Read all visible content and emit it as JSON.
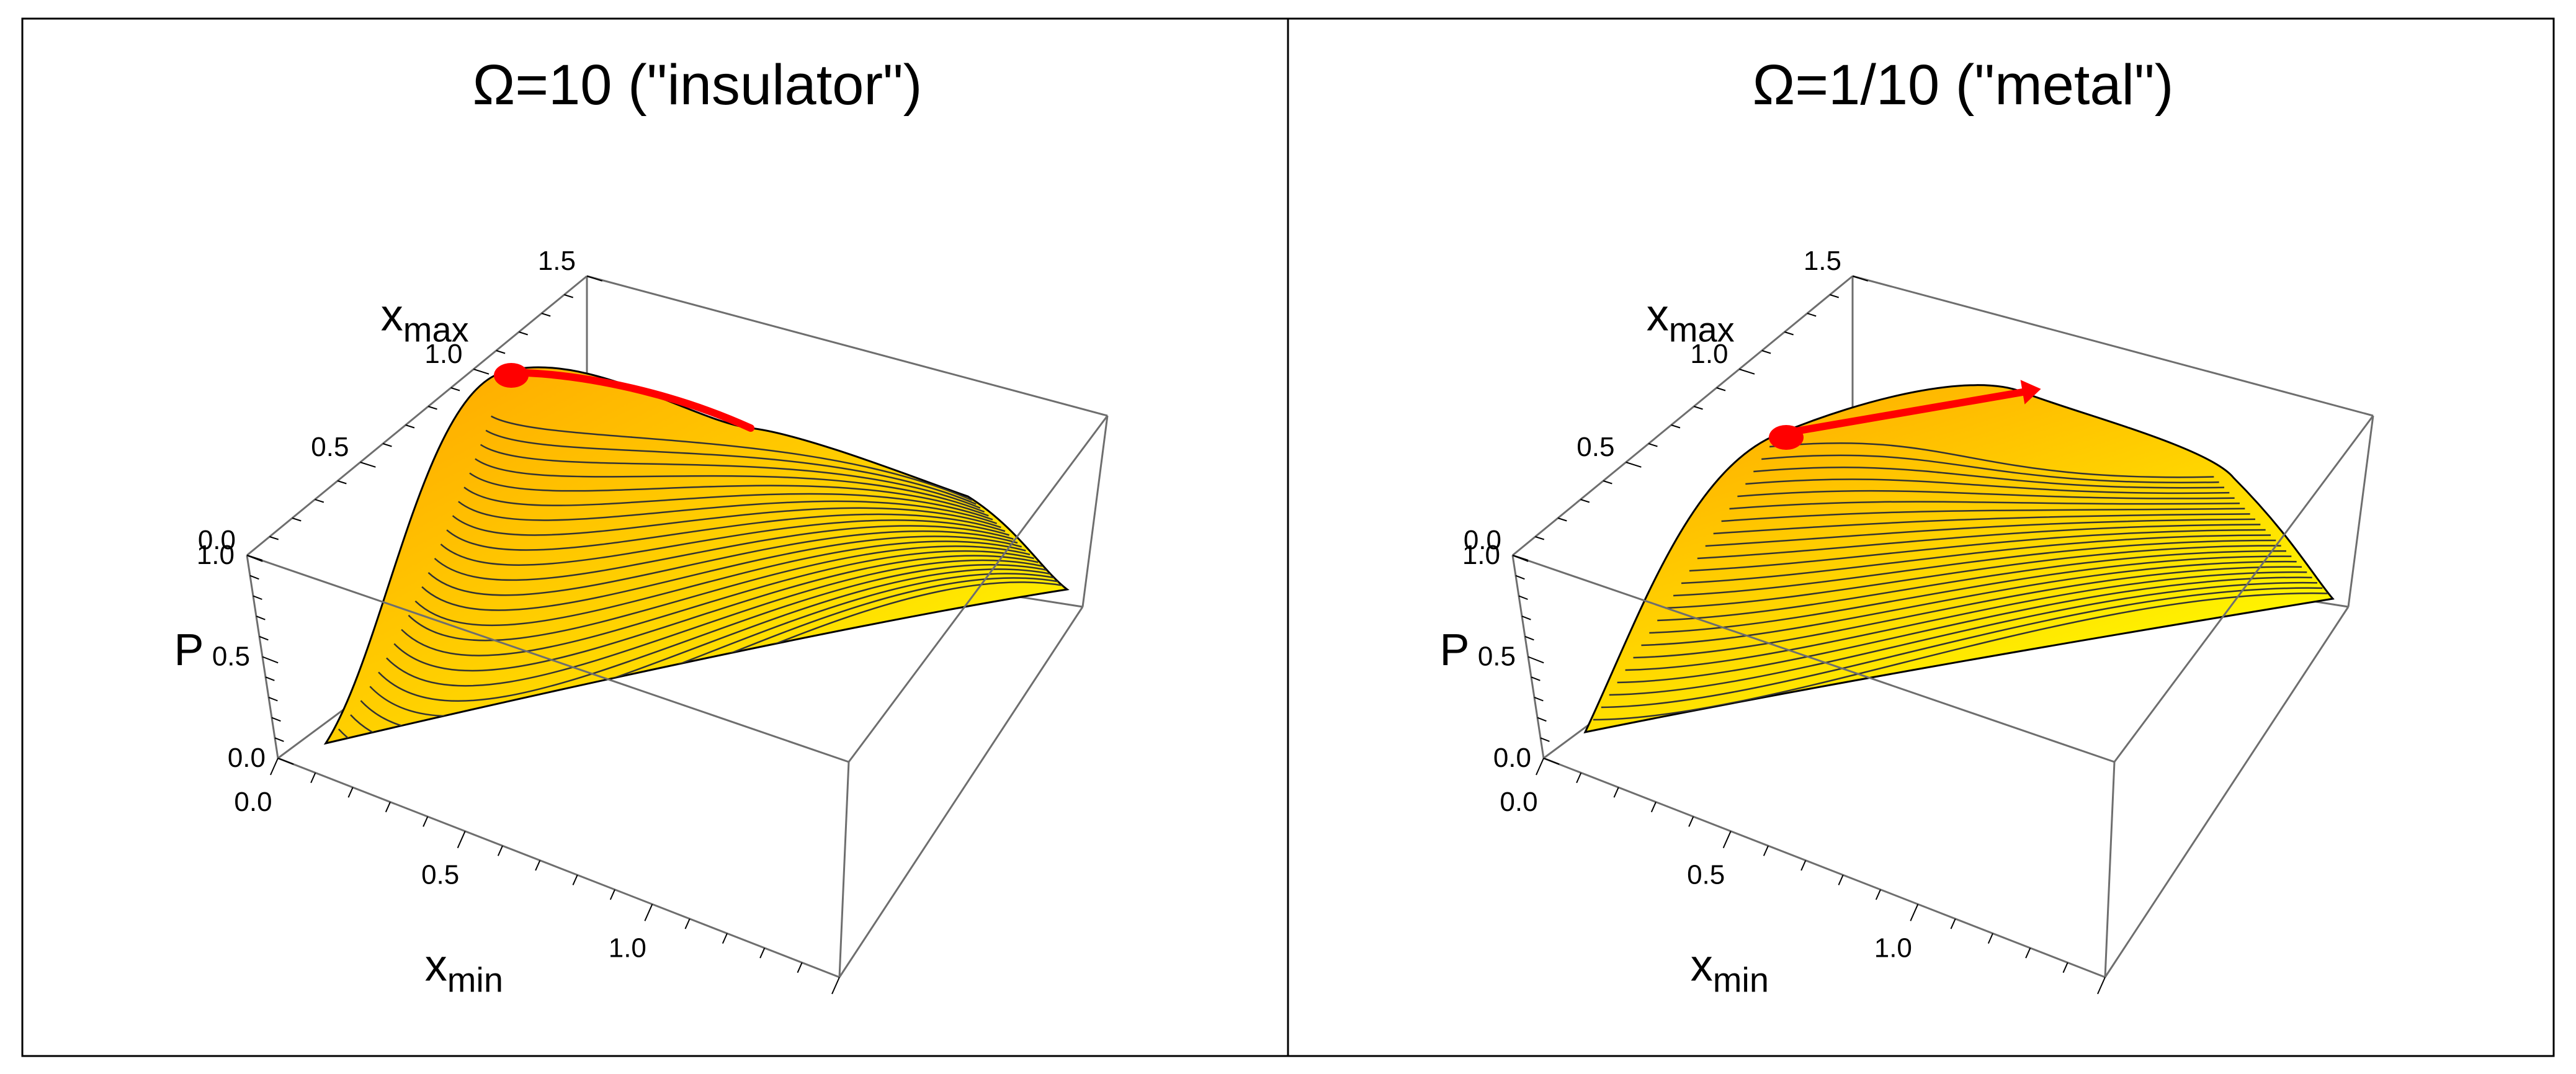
{
  "chart_data": [
    {
      "type": "surface3d",
      "title": "Ω=10 (\"insulator\")",
      "xlabel": "x",
      "xlabel_sub": "min",
      "ylabel": "x",
      "ylabel_sub": "max",
      "zlabel": "P",
      "x_ticks": [
        "0.0",
        "0.5",
        "1.0"
      ],
      "y_ticks": [
        "0.0",
        "0.5",
        "1.0",
        "1.5"
      ],
      "z_ticks": [
        "0.0",
        "0.5",
        "1.0"
      ],
      "xlim": [
        0,
        1.5
      ],
      "ylim": [
        0,
        1.5
      ],
      "zlim": [
        0,
        1.0
      ],
      "surface_colormap": [
        "#ffff00",
        "#ffa500"
      ],
      "path_color": "#ff0000",
      "path_start": {
        "xmin": 0.05,
        "xmax": 1.0,
        "P": 0.97
      },
      "path_end": {
        "xmin": 0.35,
        "xmax": 1.1,
        "P": 0.9
      }
    },
    {
      "type": "surface3d",
      "title": "Ω=1/10 (\"metal\")",
      "xlabel": "x",
      "xlabel_sub": "min",
      "ylabel": "x",
      "ylabel_sub": "max",
      "zlabel": "P",
      "x_ticks": [
        "0.0",
        "0.5",
        "1.0"
      ],
      "y_ticks": [
        "0.0",
        "0.5",
        "1.0",
        "1.5"
      ],
      "z_ticks": [
        "0.0",
        "0.5",
        "1.0"
      ],
      "xlim": [
        0,
        1.5
      ],
      "ylim": [
        0,
        1.5
      ],
      "zlim": [
        0,
        1.0
      ],
      "surface_colormap": [
        "#ffff00",
        "#ffa500"
      ],
      "path_color": "#ff0000",
      "path_start": {
        "xmin": 0.3,
        "xmax": 0.5,
        "P": 0.74
      },
      "path_end": {
        "xmin": 0.6,
        "xmax": 1.2,
        "P": 0.74
      }
    }
  ]
}
